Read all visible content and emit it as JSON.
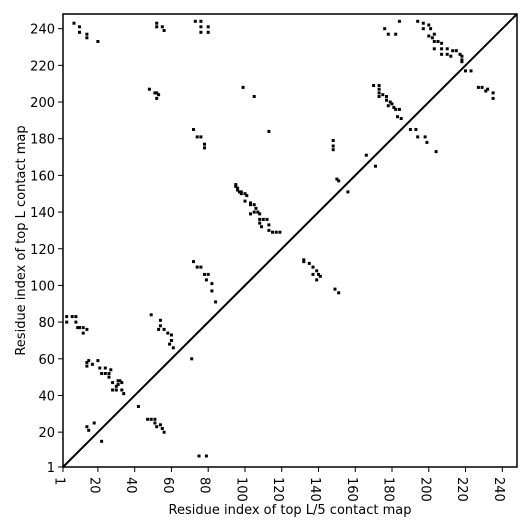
{
  "chart_data": {
    "type": "scatter",
    "xlabel": "Residue index of top L/5 contact map",
    "ylabel": "Residue index of top L contact map",
    "xlim": [
      1,
      248
    ],
    "ylim": [
      1,
      248
    ],
    "xticks": [
      1,
      20,
      40,
      60,
      80,
      100,
      120,
      140,
      160,
      180,
      200,
      220,
      240
    ],
    "yticks": [
      1,
      20,
      40,
      60,
      80,
      100,
      120,
      140,
      160,
      180,
      200,
      220,
      240
    ],
    "grid": false,
    "diagonal": true,
    "marker": "square",
    "color": "#000000",
    "series": [
      {
        "points": [
          [
            7,
            243
          ],
          [
            10,
            241
          ],
          [
            10,
            238
          ],
          [
            14,
            237
          ],
          [
            14,
            235
          ],
          [
            20,
            233
          ],
          [
            52,
            243
          ],
          [
            52,
            241
          ],
          [
            55,
            241
          ],
          [
            56,
            239
          ],
          [
            73,
            244
          ],
          [
            76,
            244
          ],
          [
            76,
            241
          ],
          [
            80,
            241
          ],
          [
            76,
            238
          ],
          [
            80,
            238
          ],
          [
            48,
            207
          ],
          [
            51,
            205
          ],
          [
            52,
            205
          ],
          [
            53,
            204
          ],
          [
            52,
            202
          ],
          [
            99,
            208
          ],
          [
            105,
            203
          ],
          [
            72,
            185
          ],
          [
            74,
            181
          ],
          [
            76,
            181
          ],
          [
            78,
            177
          ],
          [
            78,
            175
          ],
          [
            113,
            184
          ],
          [
            95,
            155
          ],
          [
            95,
            154
          ],
          [
            96,
            153
          ],
          [
            96,
            152
          ],
          [
            97,
            151
          ],
          [
            98,
            151
          ],
          [
            98,
            150
          ],
          [
            100,
            150
          ],
          [
            101,
            149
          ],
          [
            100,
            146
          ],
          [
            103,
            145
          ],
          [
            103,
            144
          ],
          [
            105,
            144
          ],
          [
            106,
            142
          ],
          [
            107,
            140
          ],
          [
            105,
            140
          ],
          [
            108,
            139
          ],
          [
            103,
            139
          ],
          [
            108,
            136
          ],
          [
            110,
            136
          ],
          [
            112,
            136
          ],
          [
            108,
            134
          ],
          [
            113,
            133
          ],
          [
            109,
            132
          ],
          [
            113,
            130
          ],
          [
            115,
            129
          ],
          [
            117,
            129
          ],
          [
            119,
            129
          ],
          [
            72,
            113
          ],
          [
            74,
            110
          ],
          [
            76,
            110
          ],
          [
            78,
            106
          ],
          [
            80,
            106
          ],
          [
            79,
            103
          ],
          [
            82,
            101
          ],
          [
            82,
            97
          ],
          [
            84,
            91
          ],
          [
            132,
            114
          ],
          [
            132,
            113
          ],
          [
            135,
            112
          ],
          [
            137,
            110
          ],
          [
            139,
            108
          ],
          [
            137,
            106
          ],
          [
            140,
            106
          ],
          [
            141,
            105
          ],
          [
            139,
            103
          ],
          [
            149,
            98
          ],
          [
            151,
            96
          ],
          [
            148,
            179
          ],
          [
            148,
            176
          ],
          [
            148,
            174
          ],
          [
            150,
            158
          ],
          [
            151,
            157
          ],
          [
            156,
            151
          ],
          [
            166,
            171
          ],
          [
            171,
            165
          ],
          [
            170,
            209
          ],
          [
            173,
            209
          ],
          [
            173,
            207
          ],
          [
            173,
            205
          ],
          [
            173,
            203
          ],
          [
            175,
            204
          ],
          [
            177,
            203
          ],
          [
            177,
            201
          ],
          [
            179,
            200
          ],
          [
            180,
            199
          ],
          [
            178,
            198
          ],
          [
            181,
            197
          ],
          [
            182,
            196
          ],
          [
            184,
            196
          ],
          [
            183,
            192
          ],
          [
            185,
            191
          ],
          [
            176,
            240
          ],
          [
            178,
            237
          ],
          [
            182,
            237
          ],
          [
            184,
            244
          ],
          [
            194,
            244
          ],
          [
            197,
            243
          ],
          [
            197,
            240
          ],
          [
            200,
            242
          ],
          [
            201,
            240
          ],
          [
            203,
            237
          ],
          [
            200,
            236
          ],
          [
            202,
            235
          ],
          [
            203,
            233
          ],
          [
            205,
            233
          ],
          [
            207,
            232
          ],
          [
            203,
            229
          ],
          [
            207,
            229
          ],
          [
            210,
            229
          ],
          [
            207,
            226
          ],
          [
            210,
            226
          ],
          [
            212,
            225
          ],
          [
            213,
            228
          ],
          [
            215,
            228
          ],
          [
            217,
            226
          ],
          [
            218,
            225
          ],
          [
            218,
            223
          ],
          [
            218,
            222
          ],
          [
            220,
            217
          ],
          [
            223,
            217
          ],
          [
            227,
            208
          ],
          [
            229,
            208
          ],
          [
            232,
            207
          ],
          [
            231,
            206
          ],
          [
            235,
            205
          ],
          [
            235,
            202
          ],
          [
            190,
            185
          ],
          [
            193,
            185
          ],
          [
            194,
            181
          ],
          [
            198,
            181
          ],
          [
            199,
            178
          ],
          [
            204,
            173
          ],
          [
            3,
            83
          ],
          [
            3,
            80
          ],
          [
            6,
            83
          ],
          [
            8,
            83
          ],
          [
            8,
            80
          ],
          [
            9,
            77
          ],
          [
            10,
            77
          ],
          [
            12,
            77
          ],
          [
            12,
            74
          ],
          [
            14,
            76
          ],
          [
            15,
            59
          ],
          [
            14,
            58
          ],
          [
            14,
            56
          ],
          [
            17,
            57
          ],
          [
            20,
            59
          ],
          [
            21,
            55
          ],
          [
            22,
            52
          ],
          [
            24,
            52
          ],
          [
            26,
            52
          ],
          [
            24,
            55
          ],
          [
            27,
            54
          ],
          [
            26,
            50
          ],
          [
            28,
            47
          ],
          [
            31,
            48
          ],
          [
            32,
            48
          ],
          [
            31,
            46
          ],
          [
            33,
            47
          ],
          [
            30,
            45
          ],
          [
            28,
            43
          ],
          [
            30,
            43
          ],
          [
            33,
            43
          ],
          [
            34,
            41
          ],
          [
            49,
            84
          ],
          [
            54,
            81
          ],
          [
            54,
            78
          ],
          [
            53,
            76
          ],
          [
            56,
            76
          ],
          [
            58,
            74
          ],
          [
            60,
            73
          ],
          [
            60,
            70
          ],
          [
            59,
            68
          ],
          [
            61,
            66
          ],
          [
            71,
            60
          ],
          [
            14,
            23
          ],
          [
            15,
            21
          ],
          [
            18,
            25
          ],
          [
            22,
            15
          ],
          [
            42,
            34
          ],
          [
            47,
            27
          ],
          [
            49,
            27
          ],
          [
            51,
            27
          ],
          [
            51,
            25
          ],
          [
            52,
            23
          ],
          [
            54,
            24
          ],
          [
            55,
            22
          ],
          [
            56,
            20
          ],
          [
            75,
            7
          ],
          [
            79,
            7
          ]
        ]
      }
    ]
  }
}
